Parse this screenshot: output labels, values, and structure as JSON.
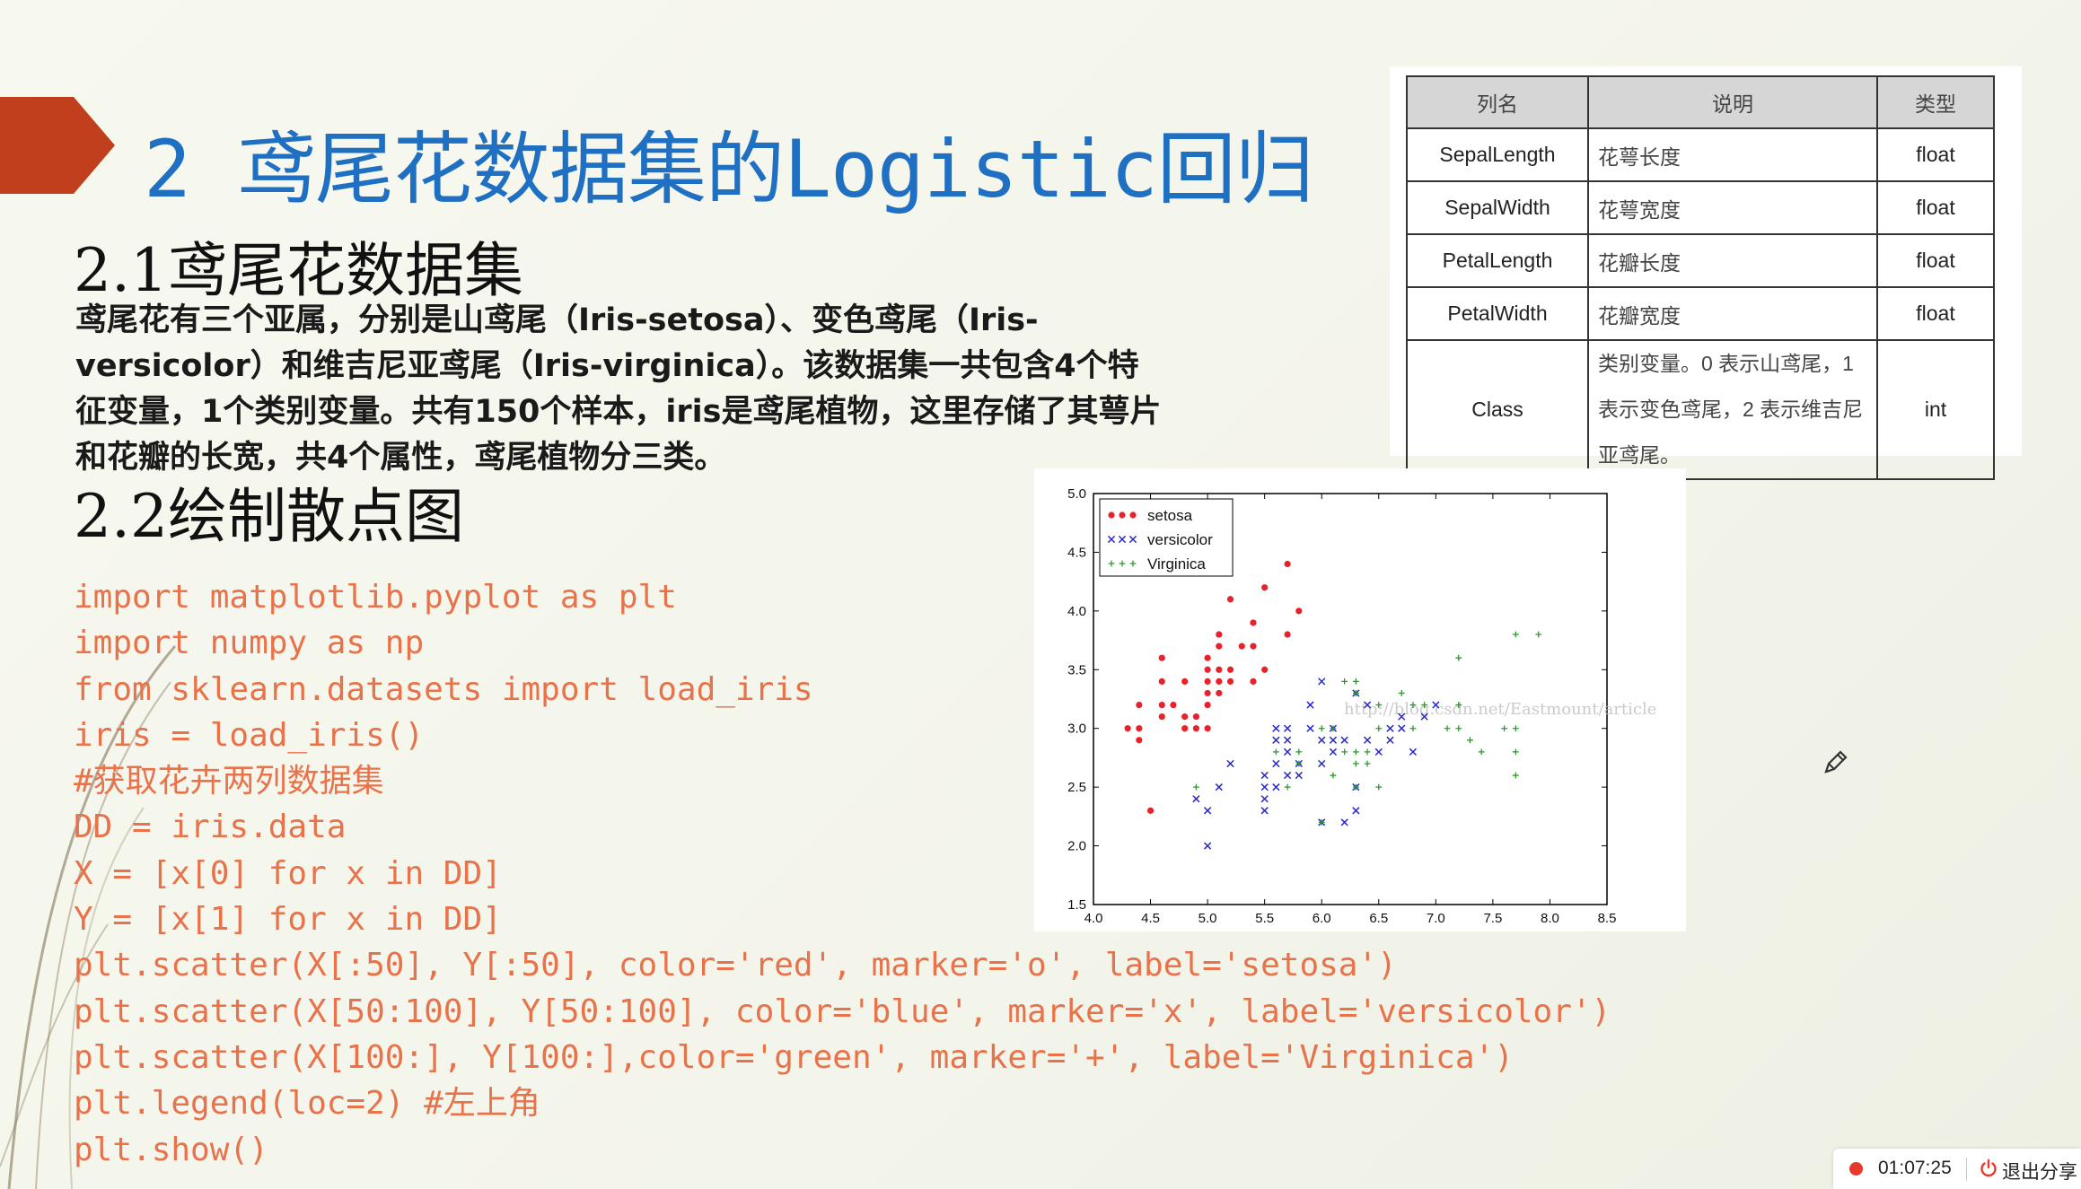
{
  "slide": {
    "title": "2 鸢尾花数据集的Logistic回归",
    "section1_heading": "2.1鸢尾花数据集",
    "section1_text_lines": [
      "鸢尾花有三个亚属，分别是山鸢尾（Iris-setosa）、变色鸢尾（Iris-",
      "versicolor）和维吉尼亚鸢尾（Iris-virginica）。该数据集一共包含4个特",
      "征变量，1个类别变量。共有150个样本，iris是鸢尾植物，这里存储了其萼片",
      "和花瓣的长宽，共4个属性，鸢尾植物分三类。"
    ],
    "section2_heading": "2.2绘制散点图",
    "code_lines": [
      "import matplotlib.pyplot as plt",
      "import numpy as np",
      "from sklearn.datasets import load_iris",
      "iris = load_iris()",
      "#获取花卉两列数据集",
      "DD = iris.data",
      "X = [x[0] for x in DD]",
      "Y = [x[1] for x in DD]",
      "plt.scatter(X[:50], Y[:50], color='red', marker='o', label='setosa')",
      "plt.scatter(X[50:100], Y[50:100], color='blue', marker='x', label='versicolor')",
      "plt.scatter(X[100:], Y[100:],color='green', marker='+', label='Virginica')",
      "plt.legend(loc=2) #左上角",
      "plt.show()"
    ]
  },
  "table": {
    "headers": [
      "列名",
      "说明",
      "类型"
    ],
    "rows": [
      [
        "SepalLength",
        "花萼长度",
        "float"
      ],
      [
        "SepalWidth",
        "花萼宽度",
        "float"
      ],
      [
        "PetalLength",
        "花瓣长度",
        "float"
      ],
      [
        "PetalWidth",
        "花瓣宽度",
        "float"
      ],
      [
        "Class",
        "类别变量。0 表示山鸢尾，1 表示变色鸢尾，2 表示维吉尼亚鸢尾。",
        "int"
      ]
    ]
  },
  "chart_data": {
    "type": "scatter",
    "title": "",
    "xlabel": "",
    "ylabel": "",
    "xlim": [
      4.0,
      8.5
    ],
    "ylim": [
      1.5,
      5.0
    ],
    "xticks": [
      "4.0",
      "4.5",
      "5.0",
      "5.5",
      "6.0",
      "6.5",
      "7.0",
      "7.5",
      "8.0",
      "8.5"
    ],
    "yticks": [
      "1.5",
      "2.0",
      "2.5",
      "3.0",
      "3.5",
      "4.0",
      "4.5",
      "5.0"
    ],
    "legend_position": "top-left",
    "watermark": "http://blog.csdn.net/Eastmount/article",
    "series": [
      {
        "name": "setosa",
        "color": "#e8222a",
        "marker": "o",
        "points": [
          [
            4.3,
            3.0
          ],
          [
            4.4,
            2.9
          ],
          [
            4.4,
            3.0
          ],
          [
            4.4,
            3.2
          ],
          [
            4.5,
            2.3
          ],
          [
            4.6,
            3.1
          ],
          [
            4.6,
            3.2
          ],
          [
            4.6,
            3.4
          ],
          [
            4.6,
            3.6
          ],
          [
            4.7,
            3.2
          ],
          [
            4.8,
            3.0
          ],
          [
            4.8,
            3.1
          ],
          [
            4.8,
            3.4
          ],
          [
            4.9,
            3.0
          ],
          [
            4.9,
            3.1
          ],
          [
            5.0,
            3.0
          ],
          [
            5.0,
            3.2
          ],
          [
            5.0,
            3.3
          ],
          [
            5.0,
            3.4
          ],
          [
            5.0,
            3.5
          ],
          [
            5.0,
            3.6
          ],
          [
            5.1,
            3.3
          ],
          [
            5.1,
            3.4
          ],
          [
            5.1,
            3.5
          ],
          [
            5.1,
            3.7
          ],
          [
            5.1,
            3.8
          ],
          [
            5.2,
            3.4
          ],
          [
            5.2,
            3.5
          ],
          [
            5.2,
            4.1
          ],
          [
            5.3,
            3.7
          ],
          [
            5.4,
            3.4
          ],
          [
            5.4,
            3.7
          ],
          [
            5.4,
            3.9
          ],
          [
            5.5,
            3.5
          ],
          [
            5.5,
            4.2
          ],
          [
            5.7,
            3.8
          ],
          [
            5.7,
            4.4
          ],
          [
            5.8,
            4.0
          ]
        ]
      },
      {
        "name": "versicolor",
        "color": "#2828c8",
        "marker": "x",
        "points": [
          [
            4.9,
            2.4
          ],
          [
            5.0,
            2.0
          ],
          [
            5.0,
            2.3
          ],
          [
            5.1,
            2.5
          ],
          [
            5.2,
            2.7
          ],
          [
            5.5,
            2.3
          ],
          [
            5.5,
            2.4
          ],
          [
            5.5,
            2.5
          ],
          [
            5.5,
            2.6
          ],
          [
            5.6,
            2.5
          ],
          [
            5.6,
            2.7
          ],
          [
            5.6,
            2.9
          ],
          [
            5.6,
            3.0
          ],
          [
            5.7,
            2.6
          ],
          [
            5.7,
            2.8
          ],
          [
            5.7,
            2.9
          ],
          [
            5.7,
            3.0
          ],
          [
            5.8,
            2.6
          ],
          [
            5.8,
            2.7
          ],
          [
            5.9,
            3.0
          ],
          [
            5.9,
            3.2
          ],
          [
            6.0,
            2.2
          ],
          [
            6.0,
            2.7
          ],
          [
            6.0,
            2.9
          ],
          [
            6.0,
            3.4
          ],
          [
            6.1,
            2.8
          ],
          [
            6.1,
            2.9
          ],
          [
            6.1,
            3.0
          ],
          [
            6.2,
            2.2
          ],
          [
            6.2,
            2.9
          ],
          [
            6.3,
            2.3
          ],
          [
            6.3,
            2.5
          ],
          [
            6.3,
            3.3
          ],
          [
            6.4,
            2.9
          ],
          [
            6.4,
            3.2
          ],
          [
            6.5,
            2.8
          ],
          [
            6.6,
            2.9
          ],
          [
            6.6,
            3.0
          ],
          [
            6.7,
            3.0
          ],
          [
            6.7,
            3.1
          ],
          [
            6.8,
            2.8
          ],
          [
            6.9,
            3.1
          ],
          [
            7.0,
            3.2
          ]
        ]
      },
      {
        "name": "Virginica",
        "color": "#2a9a2a",
        "marker": "+",
        "points": [
          [
            4.9,
            2.5
          ],
          [
            5.6,
            2.8
          ],
          [
            5.7,
            2.5
          ],
          [
            5.8,
            2.7
          ],
          [
            5.8,
            2.8
          ],
          [
            6.0,
            2.2
          ],
          [
            6.0,
            3.0
          ],
          [
            6.1,
            2.6
          ],
          [
            6.1,
            3.0
          ],
          [
            6.2,
            2.8
          ],
          [
            6.2,
            3.4
          ],
          [
            6.3,
            2.5
          ],
          [
            6.3,
            2.7
          ],
          [
            6.3,
            2.8
          ],
          [
            6.3,
            3.3
          ],
          [
            6.3,
            3.4
          ],
          [
            6.4,
            2.7
          ],
          [
            6.4,
            2.8
          ],
          [
            6.5,
            2.5
          ],
          [
            6.5,
            3.0
          ],
          [
            6.5,
            3.2
          ],
          [
            6.7,
            3.3
          ],
          [
            6.8,
            3.0
          ],
          [
            6.8,
            3.2
          ],
          [
            6.9,
            3.2
          ],
          [
            7.1,
            3.0
          ],
          [
            7.2,
            3.0
          ],
          [
            7.2,
            3.2
          ],
          [
            7.2,
            3.6
          ],
          [
            7.3,
            2.9
          ],
          [
            7.4,
            2.8
          ],
          [
            7.6,
            3.0
          ],
          [
            7.7,
            2.6
          ],
          [
            7.7,
            2.8
          ],
          [
            7.7,
            3.0
          ],
          [
            7.7,
            3.8
          ],
          [
            7.9,
            3.8
          ]
        ]
      }
    ]
  },
  "status_bar": {
    "timer": "01:07:25",
    "exit_label": "退出分享",
    "rec_color": "#e8392c"
  },
  "icons": {
    "pen": "pen-icon",
    "power": "power-icon",
    "record": "record-dot-icon"
  },
  "colors": {
    "title": "#1f6fc2",
    "code": "#e8734a",
    "banner": "#c0401e"
  }
}
